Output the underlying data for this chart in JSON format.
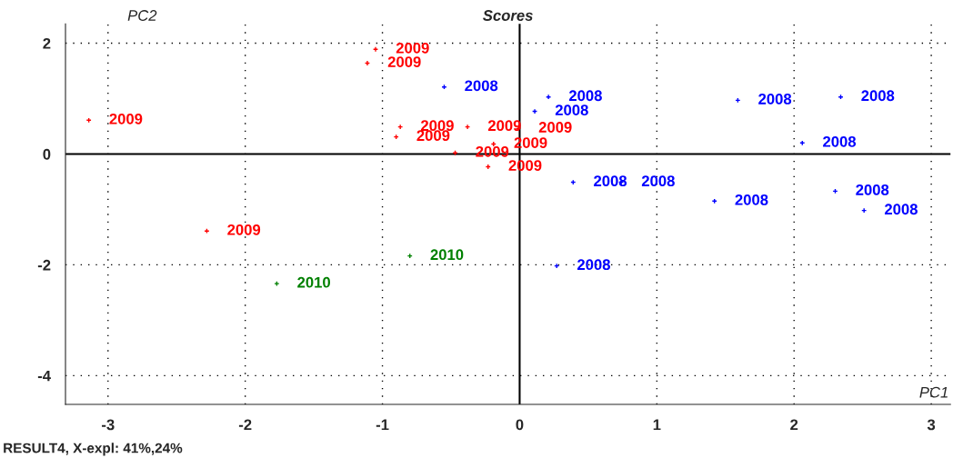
{
  "chart_data": {
    "type": "scatter",
    "title": "Scores",
    "xlabel": "PC1",
    "ylabel": "PC2",
    "annotations": [
      "RESULT4, X-expl: 41%,24%"
    ],
    "xlim": [
      -3.31,
      3.14
    ],
    "ylim": [
      -4.52,
      2.35
    ],
    "xticks": [
      -3,
      -2,
      -1,
      0,
      1,
      2,
      3
    ],
    "yticks": [
      -4,
      -2,
      0,
      2
    ],
    "grid": true,
    "marker": "cross",
    "series": [
      {
        "name": "2009",
        "color": "#ff0000",
        "x": [
          -3.14,
          -1.05,
          -1.11,
          -0.87,
          -0.9,
          -0.47,
          -0.23,
          -0.19,
          -0.38,
          -0.01,
          -2.28
        ],
        "values": [
          0.61,
          1.89,
          1.64,
          0.49,
          0.31,
          0.02,
          -0.23,
          0.18,
          0.49,
          0.46,
          -1.39
        ]
      },
      {
        "name": "2008",
        "color": "#0000ff",
        "x": [
          -0.55,
          0.21,
          0.11,
          1.59,
          2.34,
          2.06,
          0.39,
          0.74,
          1.42,
          2.3,
          2.51,
          0.27
        ],
        "values": [
          1.21,
          1.03,
          0.77,
          0.97,
          1.03,
          0.2,
          -0.51,
          -0.51,
          -0.85,
          -0.67,
          -1.02,
          -2.02
        ]
      },
      {
        "name": "2010",
        "color": "#008000",
        "x": [
          -1.77,
          -0.8
        ],
        "values": [
          -2.34,
          -1.84
        ]
      }
    ]
  }
}
